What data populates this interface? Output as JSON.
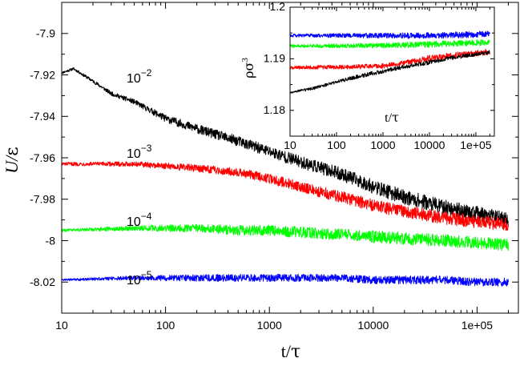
{
  "chart_data": [
    {
      "id": "main",
      "type": "line",
      "xlabel_main": "t/",
      "xlabel_greek": "τ",
      "ylabel_main": "U/",
      "ylabel_greek": "ε",
      "xscale": "log",
      "xlim": [
        10,
        250000
      ],
      "ylim": [
        -8.035,
        -7.885
      ],
      "xticks": [
        10,
        100,
        1000,
        10000,
        100000
      ],
      "xtick_labels": [
        "10",
        "100",
        "1000",
        "10000",
        "1e+05"
      ],
      "yticks": [
        -7.9,
        -7.92,
        -7.94,
        -7.96,
        -7.98,
        -8.0,
        -8.02
      ],
      "ytick_labels": [
        "-7.9",
        "-7.92",
        "-7.94",
        "-7.96",
        "-7.98",
        "-8",
        "-8.02"
      ],
      "series": [
        {
          "name": "10^-2",
          "label_base": "10",
          "label_exp": "−2",
          "color": "#000000",
          "x": [
            10,
            13,
            20,
            30,
            50,
            100,
            200,
            500,
            1000,
            2000,
            5000,
            10000,
            20000,
            50000,
            100000,
            200000
          ],
          "values": [
            -7.919,
            -7.917,
            -7.923,
            -7.929,
            -7.933,
            -7.941,
            -7.946,
            -7.952,
            -7.957,
            -7.962,
            -7.968,
            -7.974,
            -7.979,
            -7.984,
            -7.987,
            -7.99
          ],
          "noise": [
            0.0005,
            0.0006,
            0.0008,
            0.001,
            0.0012,
            0.0018,
            0.0022,
            0.0025,
            0.0028,
            0.003,
            0.0032,
            0.0034,
            0.0035,
            0.0036,
            0.0036,
            0.0036
          ]
        },
        {
          "name": "10^-3",
          "label_base": "10",
          "label_exp": "−3",
          "color": "#ff0000",
          "x": [
            10,
            50,
            100,
            200,
            500,
            1000,
            2000,
            5000,
            10000,
            20000,
            50000,
            100000,
            200000
          ],
          "values": [
            -7.963,
            -7.963,
            -7.964,
            -7.965,
            -7.967,
            -7.97,
            -7.974,
            -7.979,
            -7.983,
            -7.986,
            -7.989,
            -7.991,
            -7.992
          ],
          "noise": [
            0.0008,
            0.0012,
            0.0015,
            0.0018,
            0.002,
            0.0024,
            0.0026,
            0.0028,
            0.003,
            0.003,
            0.0032,
            0.0032,
            0.0032
          ]
        },
        {
          "name": "10^-4",
          "label_base": "10",
          "label_exp": "−4",
          "color": "#00ff00",
          "x": [
            10,
            50,
            100,
            200,
            500,
            1000,
            2000,
            5000,
            10000,
            20000,
            50000,
            100000,
            200000
          ],
          "values": [
            -7.995,
            -7.994,
            -7.994,
            -7.994,
            -7.995,
            -7.995,
            -7.996,
            -7.997,
            -7.998,
            -7.999,
            -8.0,
            -8.001,
            -8.002
          ],
          "noise": [
            0.0006,
            0.0012,
            0.0016,
            0.002,
            0.0024,
            0.0026,
            0.0028,
            0.0028,
            0.003,
            0.003,
            0.003,
            0.003,
            0.003
          ]
        },
        {
          "name": "10^-5",
          "label_base": "10",
          "label_exp": "−5",
          "color": "#0000ff",
          "x": [
            10,
            50,
            100,
            200,
            500,
            1000,
            2000,
            5000,
            10000,
            20000,
            50000,
            100000,
            200000
          ],
          "values": [
            -8.019,
            -8.018,
            -8.018,
            -8.018,
            -8.018,
            -8.018,
            -8.018,
            -8.018,
            -8.019,
            -8.019,
            -8.019,
            -8.02,
            -8.02
          ],
          "noise": [
            0.0005,
            0.001,
            0.0014,
            0.0016,
            0.0018,
            0.0018,
            0.0018,
            0.0018,
            0.0018,
            0.002,
            0.002,
            0.002,
            0.002
          ]
        }
      ]
    },
    {
      "id": "inset",
      "type": "line",
      "xlabel_main": "t/",
      "xlabel_greek": "τ",
      "ylabel_main": "ρσ",
      "ylabel_sup": "3",
      "xscale": "log",
      "xlim": [
        10,
        250000
      ],
      "ylim": [
        1.175,
        1.2
      ],
      "xticks": [
        10,
        100,
        1000,
        10000,
        100000
      ],
      "xtick_labels": [
        "10",
        "100",
        "1000",
        "10000",
        "1e+05"
      ],
      "yticks": [
        1.18,
        1.19,
        1.2
      ],
      "ytick_labels": [
        "1.18",
        "1.19",
        "1.2"
      ],
      "series": [
        {
          "name": "10^-5",
          "color": "#0000ff",
          "x": [
            10,
            100,
            1000,
            10000,
            100000,
            200000
          ],
          "values": [
            1.1945,
            1.1945,
            1.1945,
            1.1945,
            1.1947,
            1.1948
          ],
          "noise": [
            0.0003,
            0.0004,
            0.0005,
            0.0006,
            0.0006,
            0.0006
          ]
        },
        {
          "name": "10^-4",
          "color": "#00ff00",
          "x": [
            10,
            100,
            1000,
            10000,
            100000,
            200000
          ],
          "values": [
            1.1925,
            1.1925,
            1.1926,
            1.1928,
            1.1931,
            1.1932
          ],
          "noise": [
            0.0003,
            0.0004,
            0.0005,
            0.0006,
            0.0006,
            0.0006
          ]
        },
        {
          "name": "10^-3",
          "color": "#ff0000",
          "x": [
            10,
            100,
            1000,
            3000,
            10000,
            100000,
            200000
          ],
          "values": [
            1.1883,
            1.1884,
            1.1886,
            1.1892,
            1.1901,
            1.1911,
            1.1914
          ],
          "noise": [
            0.0003,
            0.0004,
            0.0005,
            0.0005,
            0.0006,
            0.0006,
            0.0006
          ]
        },
        {
          "name": "10^-2",
          "color": "#000000",
          "x": [
            10,
            30,
            100,
            300,
            1000,
            3000,
            10000,
            30000,
            100000,
            200000
          ],
          "values": [
            1.1835,
            1.1842,
            1.1855,
            1.1866,
            1.1876,
            1.1885,
            1.1893,
            1.1902,
            1.1909,
            1.1913
          ],
          "noise": [
            0.0002,
            0.0003,
            0.0003,
            0.0004,
            0.0004,
            0.0004,
            0.0004,
            0.0004,
            0.0004,
            0.0004
          ]
        }
      ]
    }
  ]
}
